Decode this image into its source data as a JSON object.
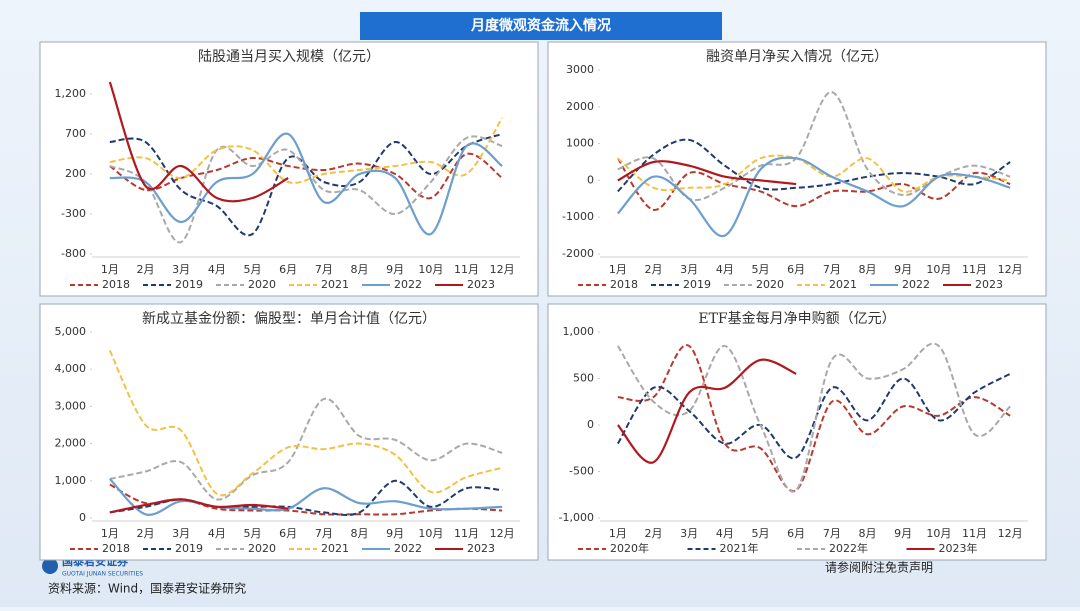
{
  "header": {
    "title": "月度微观资金流入情况"
  },
  "footer": {
    "source": "资料来源：Wind，国泰君安证券研究",
    "disclaimer": "请参阅附注免责声明",
    "logo": "国泰君安证券",
    "logo_en": "GUOTAI JUNAN SECURITIES"
  },
  "chart_data": [
    {
      "type": "line",
      "title": "陆股通当月买入规模（亿元）",
      "categories": [
        "1月",
        "2月",
        "3月",
        "4月",
        "5月",
        "6月",
        "7月",
        "8月",
        "9月",
        "10月",
        "11月",
        "12月"
      ],
      "ylim": [
        -800,
        1200
      ],
      "yticks": [
        -800,
        -300,
        200,
        700,
        {
          "value": 1200,
          "label": "1,200"
        }
      ],
      "grid": false,
      "series": [
        {
          "name": "2018",
          "color": "#b83a2e",
          "dash": true,
          "values": [
            300,
            0,
            150,
            250,
            400,
            300,
            250,
            330,
            200,
            -100,
            450,
            150
          ]
        },
        {
          "name": "2019",
          "color": "#1f3a6e",
          "dash": true,
          "values": [
            600,
            600,
            0,
            -200,
            -550,
            400,
            100,
            100,
            600,
            200,
            550,
            700
          ]
        },
        {
          "name": "2020",
          "color": "#a9a9a9",
          "dash": true,
          "values": [
            300,
            100,
            -650,
            500,
            300,
            500,
            0,
            0,
            -300,
            100,
            650,
            550
          ]
        },
        {
          "name": "2021",
          "color": "#f3c143",
          "dash": true,
          "values": [
            350,
            400,
            150,
            500,
            500,
            100,
            200,
            250,
            300,
            350,
            200,
            900
          ]
        },
        {
          "name": "2022",
          "color": "#6c9ecf",
          "dash": false,
          "values": [
            150,
            100,
            -400,
            100,
            200,
            700,
            -150,
            200,
            150,
            -550,
            550,
            300
          ]
        },
        {
          "name": "2023",
          "color": "#b0191e",
          "dash": false,
          "values": [
            1350,
            50,
            300,
            -100,
            -100,
            150,
            null,
            null,
            null,
            null,
            null,
            null
          ]
        }
      ]
    },
    {
      "type": "line",
      "title": "融资单月净买入情况（亿元）",
      "categories": [
        "1月",
        "2月",
        "3月",
        "4月",
        "5月",
        "6月",
        "7月",
        "8月",
        "9月",
        "10月",
        "11月",
        "12月"
      ],
      "ylim": [
        -2000,
        3000
      ],
      "yticks": [
        -2000,
        -1000,
        0,
        1000,
        2000,
        3000
      ],
      "grid": false,
      "series": [
        {
          "name": "2018",
          "color": "#b83a2e",
          "dash": true,
          "values": [
            600,
            -800,
            200,
            -100,
            -300,
            -700,
            -300,
            -300,
            -100,
            -500,
            200,
            -100
          ]
        },
        {
          "name": "2019",
          "color": "#1f3a6e",
          "dash": true,
          "values": [
            -300,
            700,
            1100,
            400,
            -200,
            -200,
            -100,
            100,
            200,
            100,
            -100,
            500
          ]
        },
        {
          "name": "2020",
          "color": "#a9a9a9",
          "dash": true,
          "values": [
            300,
            600,
            -500,
            -200,
            400,
            600,
            2400,
            300,
            -400,
            100,
            400,
            100
          ]
        },
        {
          "name": "2021",
          "color": "#f3c143",
          "dash": true,
          "values": [
            600,
            -200,
            -200,
            -100,
            600,
            600,
            100,
            600,
            -300,
            100,
            100,
            0
          ]
        },
        {
          "name": "2022",
          "color": "#6c9ecf",
          "dash": false,
          "values": [
            -900,
            100,
            -500,
            -1500,
            300,
            600,
            100,
            -300,
            -700,
            100,
            100,
            -200
          ]
        },
        {
          "name": "2023",
          "color": "#b0191e",
          "dash": false,
          "values": [
            0,
            500,
            400,
            100,
            0,
            -100,
            null,
            null,
            null,
            null,
            null,
            null
          ]
        }
      ]
    },
    {
      "type": "line",
      "title": "新成立基金份额：偏股型：单月合计值（亿元）",
      "categories": [
        "1月",
        "2月",
        "3月",
        "4月",
        "5月",
        "6月",
        "7月",
        "8月",
        "9月",
        "10月",
        "11月",
        "12月"
      ],
      "ylim": [
        0,
        5000
      ],
      "yticks": [
        0,
        {
          "value": 1000,
          "label": "1,000"
        },
        {
          "value": 2000,
          "label": "2,000"
        },
        {
          "value": 3000,
          "label": "3,000"
        },
        {
          "value": 4000,
          "label": "4,000"
        },
        {
          "value": 5000,
          "label": "5,000"
        }
      ],
      "grid": false,
      "series": [
        {
          "name": "2018",
          "color": "#b83a2e",
          "dash": true,
          "values": [
            900,
            400,
            500,
            250,
            200,
            200,
            100,
            100,
            100,
            200,
            250,
            200
          ]
        },
        {
          "name": "2019",
          "color": "#1f3a6e",
          "dash": true,
          "values": [
            150,
            300,
            500,
            300,
            300,
            300,
            150,
            150,
            1000,
            300,
            800,
            750
          ]
        },
        {
          "name": "2020",
          "color": "#a9a9a9",
          "dash": true,
          "values": [
            1050,
            1250,
            1500,
            500,
            1150,
            1500,
            3200,
            2200,
            2100,
            1550,
            2000,
            1750
          ]
        },
        {
          "name": "2021",
          "color": "#f3c143",
          "dash": true,
          "values": [
            4500,
            2500,
            2350,
            650,
            1200,
            1900,
            1850,
            2000,
            1700,
            700,
            1100,
            1350
          ]
        },
        {
          "name": "2022",
          "color": "#6c9ecf",
          "dash": false,
          "values": [
            1050,
            100,
            450,
            300,
            250,
            250,
            800,
            400,
            450,
            250,
            250,
            300
          ]
        },
        {
          "name": "2023",
          "color": "#b0191e",
          "dash": false,
          "values": [
            150,
            350,
            500,
            300,
            350,
            250,
            null,
            null,
            null,
            null,
            null,
            null
          ]
        }
      ]
    },
    {
      "type": "line",
      "title": "ETF基金每月净申购额（亿元）",
      "categories": [
        "1月",
        "2月",
        "3月",
        "4月",
        "5月",
        "6月",
        "7月",
        "8月",
        "9月",
        "10月",
        "11月",
        "12月"
      ],
      "ylim": [
        -1000,
        1000
      ],
      "yticks": [
        {
          "value": -1000,
          "label": "-1,000"
        },
        -500,
        0,
        500,
        {
          "value": 1000,
          "label": "1,000"
        }
      ],
      "grid": false,
      "series": [
        {
          "name": "2020年",
          "color": "#b83a2e",
          "dash": true,
          "values": [
            300,
            300,
            850,
            -200,
            -250,
            -700,
            250,
            -100,
            200,
            100,
            300,
            100
          ]
        },
        {
          "name": "2021年",
          "color": "#1f3a6e",
          "dash": true,
          "values": [
            -200,
            400,
            150,
            -200,
            0,
            -350,
            400,
            50,
            500,
            50,
            350,
            550
          ]
        },
        {
          "name": "2022年",
          "color": "#a9a9a9",
          "dash": true,
          "values": [
            850,
            250,
            150,
            850,
            0,
            -700,
            700,
            500,
            600,
            850,
            -100,
            200
          ]
        },
        {
          "name": "2023年",
          "color": "#b0191e",
          "dash": false,
          "values": [
            0,
            -400,
            350,
            400,
            700,
            550,
            null,
            null,
            null,
            null,
            null,
            null
          ]
        }
      ]
    }
  ]
}
